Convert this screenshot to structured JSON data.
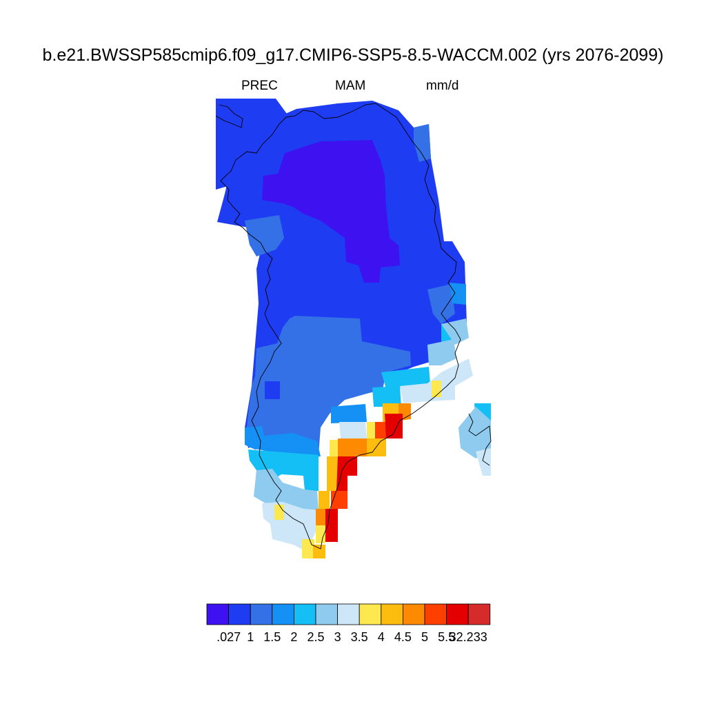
{
  "title": "b.e21.BWSSP585cmip6.f09_g17.CMIP6-SSP5-8.5-WACCM.002 (yrs 2076-2099)",
  "subtitle": {
    "variable": "PREC",
    "season": "MAM",
    "units": "mm/d"
  },
  "colorbar": {
    "colors": [
      "#3e12f0",
      "#1e3cf2",
      "#3571e6",
      "#1590f5",
      "#14bff5",
      "#8fcbee",
      "#cde7f8",
      "#fde94f",
      "#fcbd0f",
      "#fd8a00",
      "#fd3f00",
      "#e40000",
      "#d62b2b"
    ],
    "labels": [
      ".027",
      "1",
      "1.5",
      "2",
      "2.5",
      "3",
      "3.5",
      "4",
      "4.5",
      "5",
      "5.5",
      "32.233"
    ]
  }
}
